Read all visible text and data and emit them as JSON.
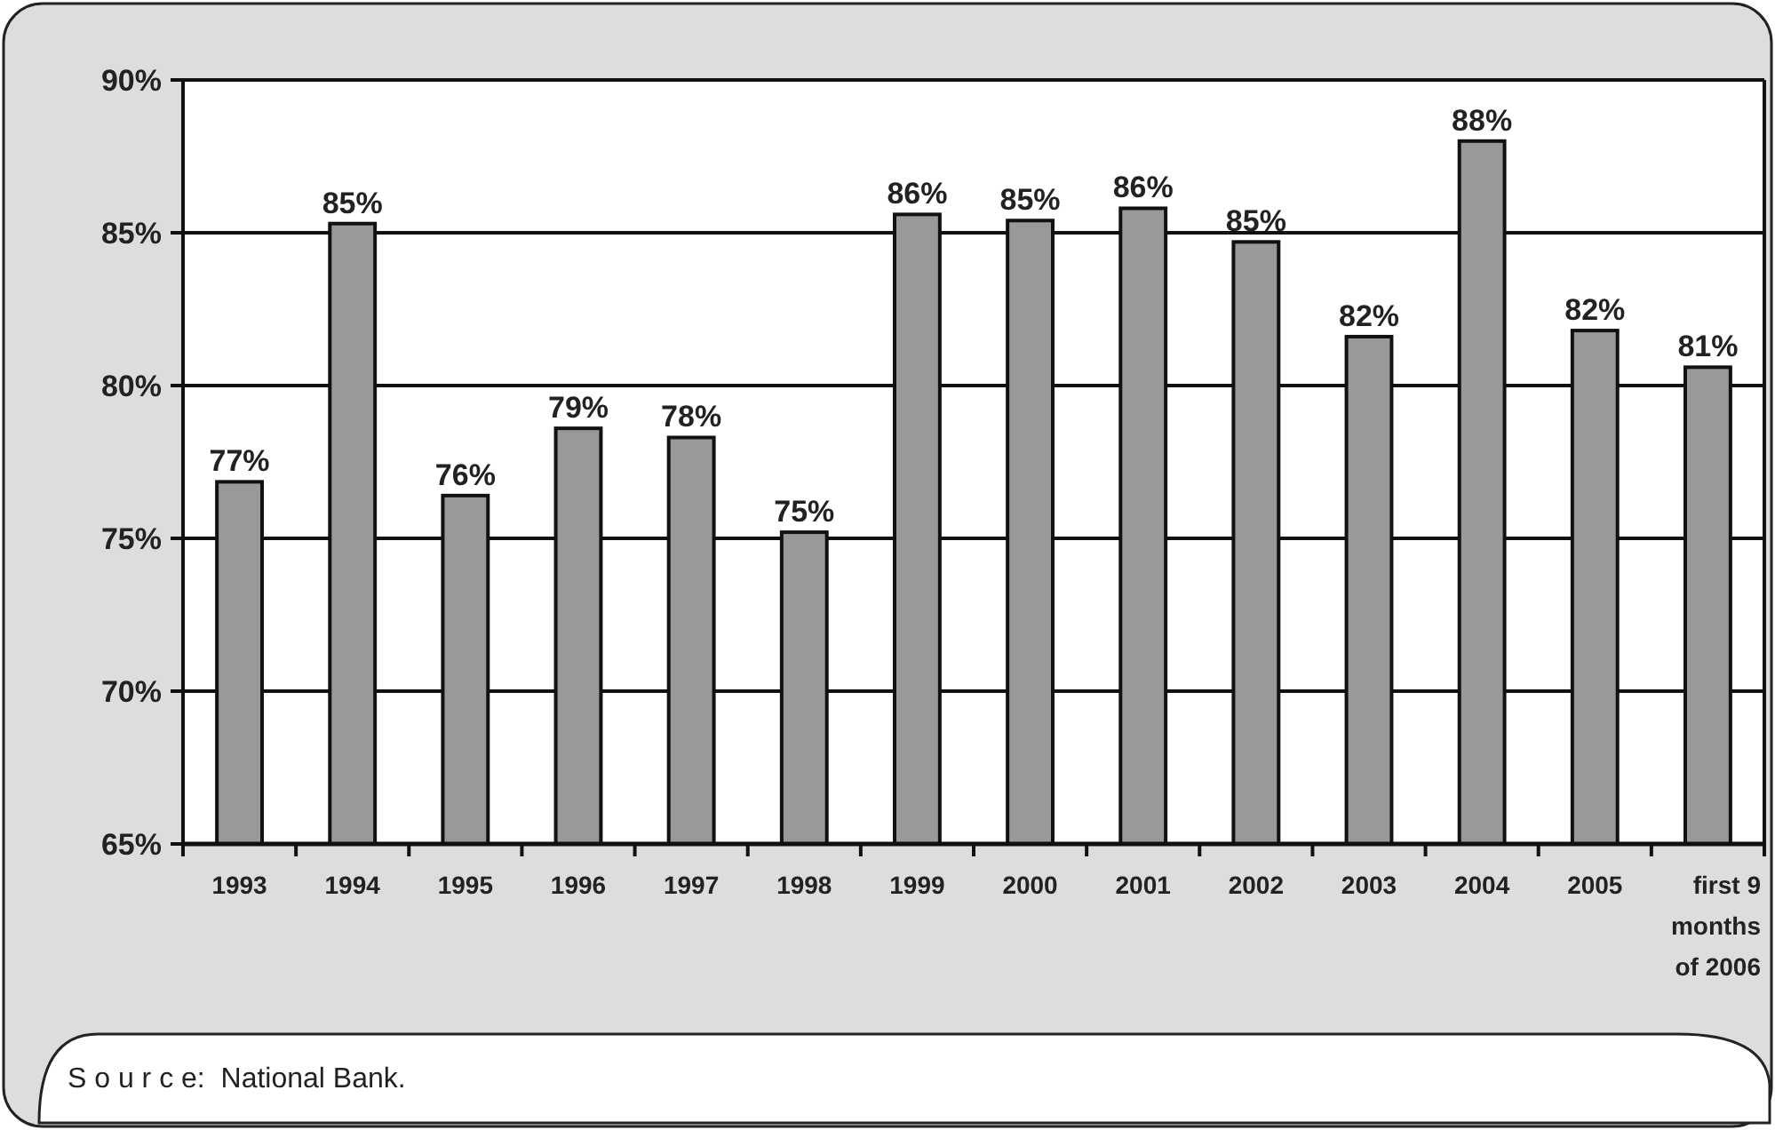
{
  "chart_data": {
    "type": "bar",
    "categories": [
      "1993",
      "1994",
      "1995",
      "1996",
      "1997",
      "1998",
      "1999",
      "2000",
      "2001",
      "2002",
      "2003",
      "2004",
      "2005",
      "first 9 months of 2006"
    ],
    "values": [
      76.85,
      85.3,
      76.4,
      78.6,
      78.3,
      75.2,
      85.6,
      85.4,
      85.8,
      84.7,
      81.6,
      88.0,
      81.8,
      80.6
    ],
    "value_labels": [
      "77%",
      "85%",
      "76%",
      "79%",
      "78%",
      "75%",
      "86%",
      "85%",
      "86%",
      "85%",
      "82%",
      "88%",
      "82%",
      "81%"
    ],
    "color": "#999999",
    "ylim": [
      65,
      90
    ],
    "yticks": [
      {
        "value": 65,
        "label": "65%"
      },
      {
        "value": 70,
        "label": "70%"
      },
      {
        "value": 75,
        "label": "75%"
      },
      {
        "value": 80,
        "label": "80%"
      },
      {
        "value": 85,
        "label": "85%"
      },
      {
        "value": 90,
        "label": "90%"
      }
    ],
    "grid": "y",
    "annotations": [
      "S o u r c e:  National Bank."
    ]
  }
}
